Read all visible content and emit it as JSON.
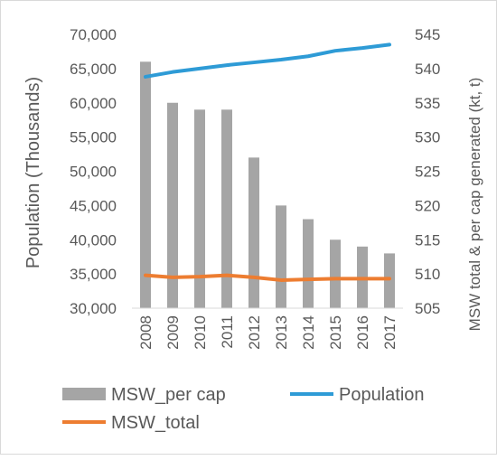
{
  "chart_data": {
    "type": "bar",
    "categories": [
      "2008",
      "2009",
      "2010",
      "2011",
      "2012",
      "2013",
      "2014",
      "2015",
      "2016",
      "2017"
    ],
    "y_left": {
      "label": "Population (Thousands)",
      "min": 30000,
      "max": 70000,
      "step": 5000,
      "ticks": [
        "30,000",
        "35,000",
        "40,000",
        "45,000",
        "50,000",
        "55,000",
        "60,000",
        "65,000",
        "70,000"
      ]
    },
    "y_right": {
      "label": "MSW total & per cap generated (kt, t)",
      "min": 505,
      "max": 545,
      "step": 5,
      "ticks": [
        "505",
        "510",
        "515",
        "520",
        "525",
        "530",
        "535",
        "540",
        "545"
      ]
    },
    "grid": false,
    "legend_position": "bottom",
    "series": [
      {
        "name": "MSW_per cap",
        "type": "bar",
        "axis": "right",
        "color": "#a5a5a5",
        "values": [
          541,
          535,
          534,
          534,
          527,
          520,
          518,
          515,
          514,
          513
        ]
      },
      {
        "name": "Population",
        "type": "line",
        "axis": "left",
        "color": "#2e9bd6",
        "values": [
          63800,
          64500,
          65000,
          65500,
          65900,
          66300,
          66800,
          67600,
          68000,
          68500
        ]
      },
      {
        "name": "MSW_total",
        "type": "line",
        "axis": "right",
        "color": "#ed7d31",
        "values": [
          509.8,
          509.5,
          509.6,
          509.8,
          509.5,
          509.1,
          509.2,
          509.3,
          509.3,
          509.3
        ]
      }
    ]
  }
}
